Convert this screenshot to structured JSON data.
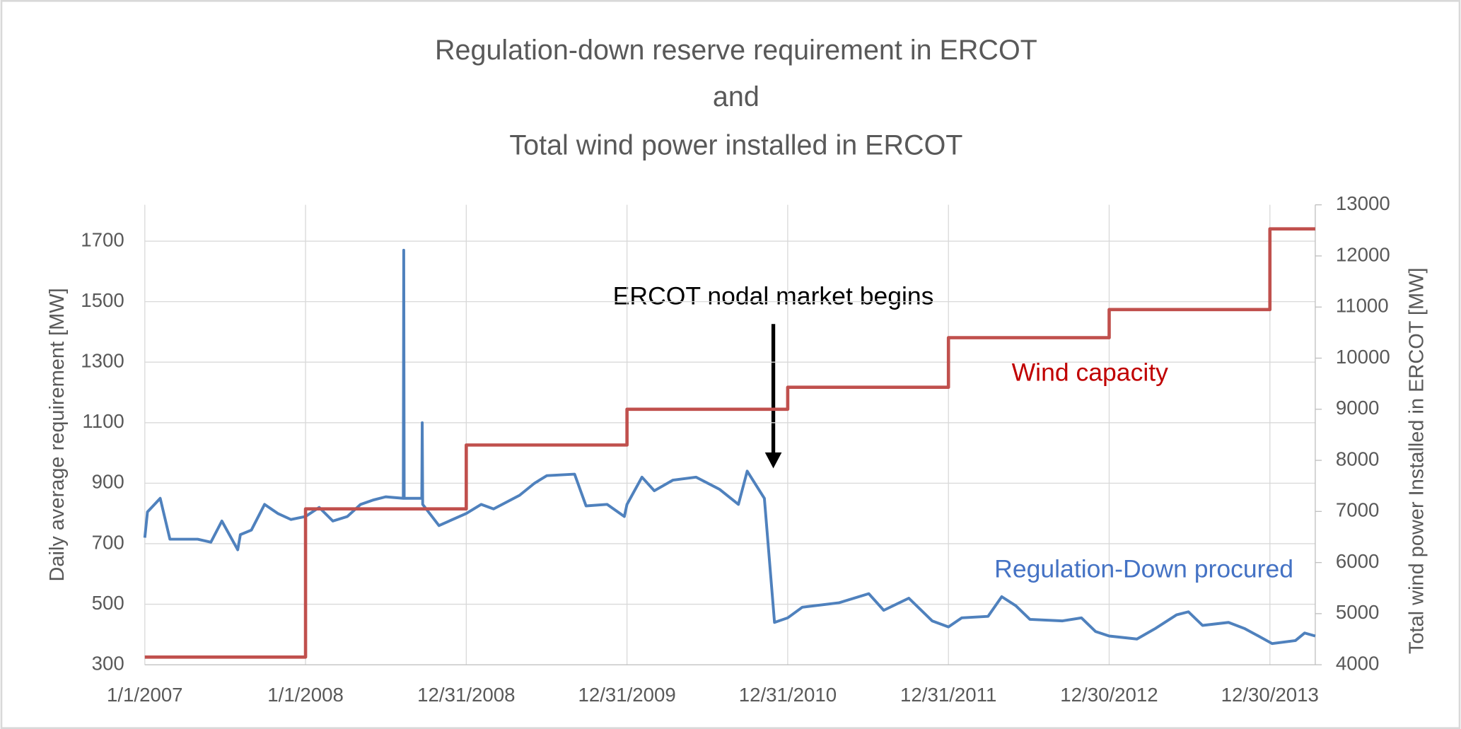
{
  "chart_data": {
    "type": "line",
    "title": [
      "Regulation-down reserve requirement in ERCOT",
      "and",
      "Total wind power installed in ERCOT"
    ],
    "y_label": "Daily average requirement  [MW]",
    "y2_label": "Total wind power Installed in ERCOT [MW]",
    "xlim": [
      "1/1/2007",
      "4/12/2014"
    ],
    "xticks": [
      "1/1/2007",
      "1/1/2008",
      "12/31/2008",
      "12/31/2009",
      "12/31/2010",
      "12/31/2011",
      "12/30/2012",
      "12/30/2013"
    ],
    "ylim": [
      300,
      1820
    ],
    "yticks": [
      300,
      500,
      700,
      900,
      1100,
      1300,
      1500,
      1700
    ],
    "y2lim": [
      4000,
      13000
    ],
    "y2ticks": [
      4000,
      5000,
      6000,
      7000,
      8000,
      9000,
      10000,
      11000,
      12000,
      13000
    ],
    "grid": true,
    "series": [
      {
        "name": "Regulation-Down procured",
        "color": "#4f81bd",
        "label_color": "#4472c4",
        "axis": "y",
        "x": [
          "1/1/2007",
          "1/7/2007",
          "2/5/2007",
          "2/27/2007",
          "5/1/2007",
          "5/31/2007",
          "6/25/2007",
          "7/31/2007",
          "8/6/2007",
          "8/31/2007",
          "9/30/2007",
          "10/30/2007",
          "11/29/2007",
          "1/1/2008",
          "2/1/2008",
          "3/3/2008",
          "4/5/2008",
          "5/5/2008",
          "6/4/2008",
          "7/1/2008",
          "8/10/2008",
          "8/11/2008",
          "8/12/2008",
          "9/21/2008",
          "9/22/2008",
          "9/23/2008",
          "10/30/2008",
          "12/31/2008",
          "2/3/2009",
          "3/3/2009",
          "5/1/2009",
          "6/4/2009",
          "7/2/2009",
          "9/3/2009",
          "9/29/2009",
          "11/16/2009",
          "12/25/2009",
          "12/31/2009",
          "2/3/2010",
          "3/3/2010",
          "4/14/2010",
          "6/6/2010",
          "7/29/2010",
          "9/10/2010",
          "9/30/2010",
          "11/8/2010",
          "12/1/2010",
          "12/31/2010",
          "2/2/2011",
          "4/27/2011",
          "7/3/2011",
          "8/6/2011",
          "10/2/2011",
          "11/24/2011",
          "12/31/2011",
          "1/30/2012",
          "3/30/2012",
          "4/30/2012",
          "6/1/2012",
          "7/3/2012",
          "9/15/2012",
          "10/28/2012",
          "11/29/2012",
          "12/30/2012",
          "3/3/2013",
          "4/14/2013",
          "6/1/2013",
          "6/28/2013",
          "7/30/2013",
          "9/27/2013",
          "11/2/2013",
          "12/4/2013",
          "1/4/2014",
          "2/26/2014",
          "3/19/2014",
          "4/12/2014"
        ],
        "values": [
          720,
          805,
          850,
          715,
          715,
          705,
          775,
          680,
          730,
          745,
          830,
          800,
          780,
          790,
          820,
          775,
          790,
          830,
          845,
          855,
          850,
          1670,
          850,
          850,
          1100,
          830,
          760,
          800,
          830,
          815,
          860,
          900,
          925,
          930,
          825,
          830,
          790,
          830,
          920,
          875,
          910,
          920,
          880,
          830,
          940,
          850,
          440,
          455,
          490,
          505,
          535,
          480,
          520,
          445,
          425,
          455,
          460,
          525,
          495,
          450,
          445,
          455,
          410,
          395,
          385,
          420,
          465,
          475,
          430,
          440,
          420,
          395,
          370,
          380,
          405,
          395
        ]
      },
      {
        "name": "Wind capacity",
        "color": "#c0504d",
        "label_color": "#c00000",
        "axis": "y2",
        "x": [
          "1/1/2007",
          "1/1/2008",
          "12/31/2008",
          "12/31/2009",
          "12/31/2010",
          "12/31/2011",
          "12/30/2012",
          "12/30/2013",
          "4/12/2014"
        ],
        "values": [
          4150,
          7050,
          8300,
          9000,
          9430,
          10400,
          10950,
          12530,
          12530
        ]
      }
    ],
    "annotation": "ERCOT nodal market begins"
  }
}
